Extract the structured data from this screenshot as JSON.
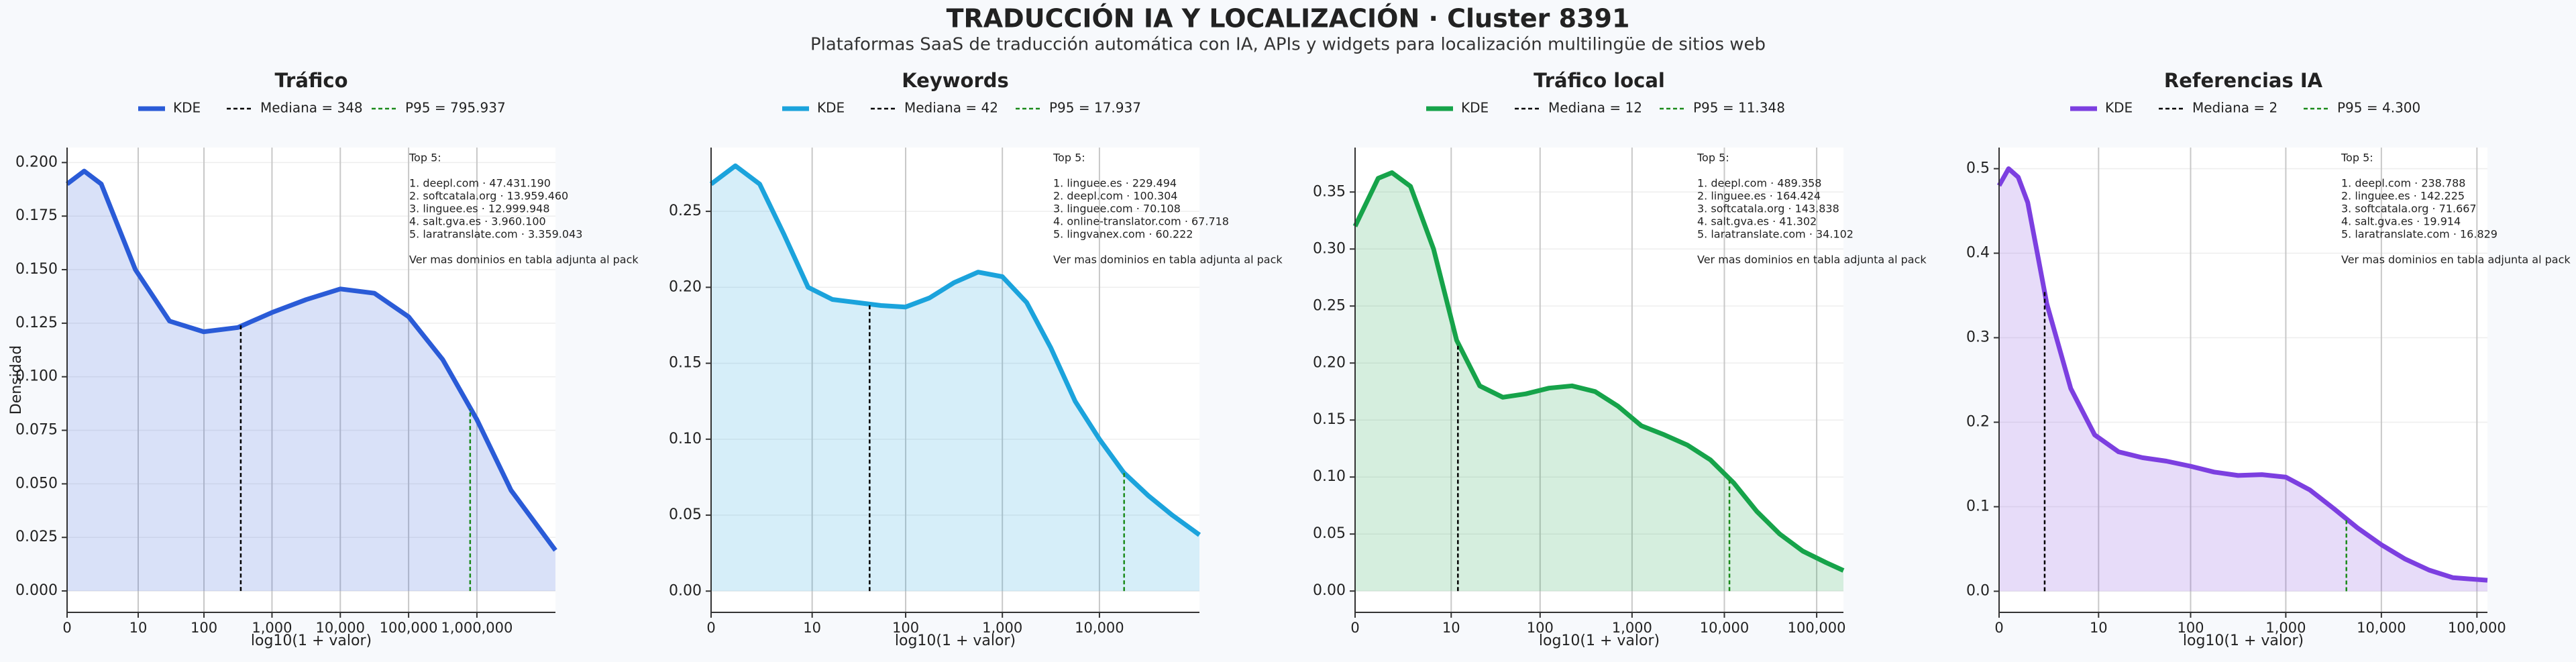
{
  "title": "TRADUCCIÓN IA Y LOCALIZACIÓN · Cluster 8391",
  "subtitle": "Plataformas SaaS de traducción automática con IA, APIs y widgets para localización multilingüe de sitios web",
  "chart_data": [
    {
      "type": "line",
      "title": "Tráfico",
      "xlabel": "log10(1 + valor)",
      "ylabel": "Densidad",
      "grid": true,
      "series": [
        {
          "name": "KDE",
          "color": "#2a5bd7",
          "x": [
            0,
            0.25,
            0.5,
            1,
            1.5,
            2,
            2.5,
            3,
            3.5,
            4,
            4.5,
            5,
            5.5,
            6,
            6.5,
            7.15
          ],
          "values": [
            0.19,
            0.196,
            0.19,
            0.15,
            0.126,
            0.121,
            0.123,
            0.13,
            0.136,
            0.141,
            0.139,
            0.128,
            0.108,
            0.08,
            0.047,
            0.019
          ]
        }
      ],
      "reference_lines": [
        {
          "name": "Mediana = 348",
          "color": "#000000",
          "x": 2.543,
          "y": 0.125
        },
        {
          "name": "P95 = 795.937",
          "color": "#1a8a1a",
          "x": 5.901,
          "y": 0.085
        }
      ],
      "annotation_title": "Top 5:",
      "annotation_lines": [
        "1. deepl.com · 47.431.190",
        "2. softcatala.org · 13.959.460",
        "3. linguee.es · 12.999.948",
        "4. salt.gva.es · 3.960.100",
        "5. laratranslate.com · 3.359.043"
      ],
      "annotation_note": "Ver mas dominios en tabla adjunta al pack",
      "xlim": [
        0,
        7.15
      ],
      "xticks": [
        0,
        {
          "value": 1.041,
          "label": "10"
        },
        {
          "value": 2.004,
          "label": "100"
        },
        {
          "value": 3,
          "label": "1,000"
        },
        {
          "value": 4,
          "label": "10,000"
        },
        {
          "value": 5,
          "label": "100,000"
        },
        {
          "value": 6,
          "label": "1,000,000"
        }
      ],
      "ylim": [
        -0.01,
        0.207
      ],
      "yticks": [
        {
          "value": 0,
          "label": "0.000"
        },
        {
          "value": 0.025,
          "label": "0.025"
        },
        {
          "value": 0.05,
          "label": "0.050"
        },
        {
          "value": 0.075,
          "label": "0.075"
        },
        {
          "value": 0.1,
          "label": "0.100"
        },
        {
          "value": 0.125,
          "label": "0.125"
        },
        {
          "value": 0.15,
          "label": "0.150"
        },
        {
          "value": 0.175,
          "label": "0.175"
        },
        {
          "value": 0.2,
          "label": "0.200"
        }
      ]
    },
    {
      "type": "line",
      "title": "Keywords",
      "xlabel": "log10(1 + valor)",
      "grid": true,
      "series": [
        {
          "name": "KDE",
          "color": "#1ba3dc",
          "x": [
            0,
            0.25,
            0.5,
            0.75,
            1,
            1.25,
            1.5,
            1.75,
            2,
            2.25,
            2.5,
            2.75,
            3,
            3.25,
            3.5,
            3.75,
            4,
            4.25,
            4.5,
            4.75,
            5.03
          ],
          "values": [
            0.268,
            0.28,
            0.268,
            0.235,
            0.2,
            0.192,
            0.19,
            0.188,
            0.187,
            0.193,
            0.203,
            0.21,
            0.207,
            0.19,
            0.16,
            0.125,
            0.1,
            0.078,
            0.063,
            0.05,
            0.037
          ]
        }
      ],
      "reference_lines": [
        {
          "name": "Mediana = 42",
          "color": "#000000",
          "x": 1.633,
          "y": 0.189
        },
        {
          "name": "P95 = 17.937",
          "color": "#1a8a1a",
          "x": 4.254,
          "y": 0.078
        }
      ],
      "annotation_title": "Top 5:",
      "annotation_lines": [
        "1. linguee.es · 229.494",
        "2. deepl.com · 100.304",
        "3. linguee.com · 70.108",
        "4. online-translator.com · 67.718",
        "5. lingvanex.com · 60.222"
      ],
      "annotation_note": "Ver mas dominios en tabla adjunta al pack",
      "xlim": [
        0,
        5.03
      ],
      "xticks": [
        0,
        {
          "value": 1.041,
          "label": "10"
        },
        {
          "value": 2.004,
          "label": "100"
        },
        {
          "value": 3,
          "label": "1,000"
        },
        {
          "value": 4,
          "label": "10,000"
        }
      ],
      "ylim": [
        -0.014,
        0.292
      ],
      "yticks": [
        {
          "value": 0,
          "label": "0.00"
        },
        {
          "value": 0.05,
          "label": "0.05"
        },
        {
          "value": 0.1,
          "label": "0.10"
        },
        {
          "value": 0.15,
          "label": "0.15"
        },
        {
          "value": 0.2,
          "label": "0.20"
        },
        {
          "value": 0.25,
          "label": "0.25"
        }
      ]
    },
    {
      "type": "line",
      "title": "Tráfico local",
      "xlabel": "log10(1 + valor)",
      "grid": true,
      "series": [
        {
          "name": "KDE",
          "color": "#16a34a",
          "x": [
            0,
            0.25,
            0.4,
            0.6,
            0.85,
            1.1,
            1.35,
            1.6,
            1.85,
            2.1,
            2.35,
            2.6,
            2.85,
            3.1,
            3.35,
            3.6,
            3.85,
            4.1,
            4.35,
            4.6,
            4.85,
            5.1,
            5.29
          ],
          "values": [
            0.32,
            0.362,
            0.367,
            0.355,
            0.3,
            0.22,
            0.18,
            0.17,
            0.173,
            0.178,
            0.18,
            0.175,
            0.162,
            0.145,
            0.137,
            0.128,
            0.115,
            0.095,
            0.07,
            0.05,
            0.035,
            0.025,
            0.018
          ]
        }
      ],
      "reference_lines": [
        {
          "name": "Mediana = 12",
          "color": "#000000",
          "x": 1.114,
          "y": 0.215
        },
        {
          "name": "P95 = 11.348",
          "color": "#1a8a1a",
          "x": 4.055,
          "y": 0.098
        }
      ],
      "annotation_title": "Top 5:",
      "annotation_lines": [
        "1. deepl.com · 489.358",
        "2. linguee.es · 164.424",
        "3. softcatala.org · 143.838",
        "4. salt.gva.es · 41.302",
        "5. laratranslate.com · 34.102"
      ],
      "annotation_note": "Ver mas dominios en tabla adjunta al pack",
      "xlim": [
        0,
        5.29
      ],
      "xticks": [
        0,
        {
          "value": 1.041,
          "label": "10"
        },
        {
          "value": 2.004,
          "label": "100"
        },
        {
          "value": 3,
          "label": "1,000"
        },
        {
          "value": 4,
          "label": "10,000"
        },
        {
          "value": 5,
          "label": "100,000"
        }
      ],
      "ylim": [
        -0.0187,
        0.389
      ],
      "yticks": [
        {
          "value": 0,
          "label": "0.00"
        },
        {
          "value": 0.05,
          "label": "0.05"
        },
        {
          "value": 0.1,
          "label": "0.10"
        },
        {
          "value": 0.15,
          "label": "0.15"
        },
        {
          "value": 0.2,
          "label": "0.20"
        },
        {
          "value": 0.25,
          "label": "0.25"
        },
        {
          "value": 0.3,
          "label": "0.30"
        },
        {
          "value": 0.35,
          "label": "0.35"
        }
      ]
    },
    {
      "type": "line",
      "title": "Referencias IA",
      "xlabel": "log10(1 + valor)",
      "grid": true,
      "series": [
        {
          "name": "KDE",
          "color": "#7c3fe0",
          "x": [
            0,
            0.1,
            0.2,
            0.3,
            0.4,
            0.5,
            0.75,
            1,
            1.25,
            1.5,
            1.75,
            2,
            2.25,
            2.5,
            2.75,
            3,
            3.25,
            3.5,
            3.75,
            4,
            4.25,
            4.5,
            4.75,
            5.11
          ],
          "values": [
            0.48,
            0.5,
            0.49,
            0.46,
            0.4,
            0.34,
            0.24,
            0.185,
            0.165,
            0.158,
            0.154,
            0.148,
            0.141,
            0.137,
            0.138,
            0.135,
            0.12,
            0.098,
            0.075,
            0.055,
            0.038,
            0.025,
            0.016,
            0.013
          ]
        }
      ],
      "reference_lines": [
        {
          "name": "Mediana = 2",
          "color": "#000000",
          "x": 0.477,
          "y": 0.355
        },
        {
          "name": "P95 = 4.300",
          "color": "#1a8a1a",
          "x": 3.634,
          "y": 0.085
        }
      ],
      "annotation_title": "Top 5:",
      "annotation_lines": [
        "1. deepl.com · 238.788",
        "2. linguee.es · 142.225",
        "3. softcatala.org · 71.667",
        "4. salt.gva.es · 19.914",
        "5. laratranslate.com · 16.829"
      ],
      "annotation_note": "Ver mas dominios en tabla adjunta al pack",
      "xlim": [
        0,
        5.11
      ],
      "xticks": [
        0,
        {
          "value": 1.041,
          "label": "10"
        },
        {
          "value": 2.004,
          "label": "100"
        },
        {
          "value": 3,
          "label": "1,000"
        },
        {
          "value": 4,
          "label": "10,000"
        },
        {
          "value": 5,
          "label": "100,000"
        }
      ],
      "ylim": [
        -0.025,
        0.525
      ],
      "yticks": [
        {
          "value": 0,
          "label": "0.0"
        },
        {
          "value": 0.1,
          "label": "0.1"
        },
        {
          "value": 0.2,
          "label": "0.2"
        },
        {
          "value": 0.3,
          "label": "0.3"
        },
        {
          "value": 0.4,
          "label": "0.4"
        },
        {
          "value": 0.5,
          "label": "0.5"
        }
      ]
    }
  ]
}
